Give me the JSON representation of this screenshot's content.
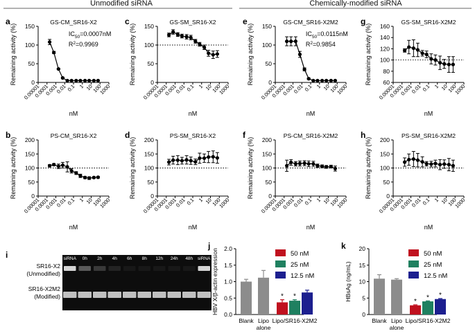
{
  "headers": {
    "left": "Unmodified siRNA",
    "right": "Chemically-modified siRNA"
  },
  "dose_panels": {
    "x_ticks": [
      "0.00001",
      "0.0001",
      "0.001",
      "0.01",
      "0.1",
      "1",
      "10",
      "100",
      "1000"
    ],
    "x_label": "nM",
    "y_label": "Remaining activity (%)",
    "reference_line": 100
  },
  "gel": {
    "letter": "i",
    "lane_labels": [
      "siRNA",
      "0h",
      "2h",
      "4h",
      "6h",
      "8h",
      "12h",
      "24h",
      "48h",
      "siRNA"
    ],
    "row_labels": [
      "SR16-X2\n(Unmodified)",
      "SR16-X2M2\n(Modified)"
    ],
    "top_band_intensity": [
      0.9,
      0.35,
      0.2,
      0.1,
      0.05,
      0.05,
      0.05,
      0.05,
      0.05,
      0.9
    ]
  },
  "chart_data": [
    {
      "id": "a",
      "letter": "a",
      "type": "line",
      "title": "GS-CM_SR16-X2",
      "xscale": "log",
      "xlim": [
        1e-05,
        1000
      ],
      "ylim": [
        0,
        150
      ],
      "yticks": [
        0,
        50,
        100,
        150
      ],
      "ref_line": false,
      "ic50": "IC",
      "ic50_sub": "50",
      "ic50_val": "=0.0007nM",
      "r2": "R",
      "r2_sup": "2",
      "r2_val": "=0.9969",
      "series": [
        {
          "x": [
            0.0002,
            0.0006,
            0.002,
            0.006,
            0.02,
            0.06,
            0.2,
            0.6,
            2,
            6,
            20,
            60
          ],
          "y": [
            108,
            80,
            36,
            12,
            5,
            5,
            5,
            5,
            5,
            5,
            5,
            5
          ],
          "err": [
            7,
            3,
            2,
            2,
            1,
            1,
            1,
            1,
            1,
            1,
            1,
            1
          ]
        }
      ]
    },
    {
      "id": "c",
      "letter": "c",
      "type": "line",
      "title": "GS-SM_SR16-X2",
      "xscale": "log",
      "xlim": [
        1e-05,
        1000
      ],
      "ylim": [
        0,
        150
      ],
      "yticks": [
        0,
        50,
        100,
        150
      ],
      "ref_line": true,
      "series": [
        {
          "x": [
            0.0002,
            0.0006,
            0.002,
            0.006,
            0.02,
            0.06,
            0.2,
            0.6,
            2,
            6,
            20,
            60
          ],
          "y": [
            127,
            135,
            128,
            124,
            122,
            120,
            110,
            102,
            94,
            78,
            74,
            76
          ],
          "err": [
            5,
            6,
            5,
            5,
            6,
            6,
            5,
            5,
            6,
            8,
            10,
            9
          ]
        }
      ]
    },
    {
      "id": "e",
      "letter": "e",
      "type": "line",
      "title": "GS-CM_SR16-X2M2",
      "xscale": "log",
      "xlim": [
        1e-05,
        1000
      ],
      "ylim": [
        0,
        150
      ],
      "yticks": [
        0,
        50,
        100,
        150
      ],
      "ref_line": false,
      "ic50": "IC",
      "ic50_sub": "50",
      "ic50_val": "=0.0115nM",
      "r2": "R",
      "r2_sup": "2",
      "r2_val": "=0.9854",
      "series": [
        {
          "x": [
            0.0002,
            0.0006,
            0.002,
            0.006,
            0.02,
            0.06,
            0.2,
            0.6,
            2,
            6,
            20,
            60
          ],
          "y": [
            110,
            110,
            110,
            75,
            35,
            10,
            5,
            5,
            5,
            5,
            5,
            5
          ],
          "err": [
            12,
            12,
            12,
            8,
            4,
            2,
            1,
            1,
            1,
            1,
            1,
            1
          ]
        }
      ]
    },
    {
      "id": "g",
      "letter": "g",
      "type": "line",
      "title": "GS-SM_SR16-X2M2",
      "xscale": "log",
      "xlim": [
        1e-05,
        1000
      ],
      "ylim": [
        60,
        160
      ],
      "yticks": [
        60,
        80,
        100,
        120,
        140,
        160
      ],
      "ref_line": true,
      "series": [
        {
          "x": [
            0.0002,
            0.0006,
            0.002,
            0.006,
            0.02,
            0.06,
            0.2,
            0.6,
            2,
            6,
            20,
            60
          ],
          "y": [
            117,
            123,
            121,
            118,
            112,
            110,
            102,
            100,
            95,
            93,
            92,
            92
          ],
          "err": [
            3,
            12,
            15,
            12,
            5,
            6,
            9,
            9,
            12,
            8,
            14,
            14
          ]
        }
      ]
    },
    {
      "id": "b",
      "letter": "b",
      "type": "line",
      "title": "PS-CM_SR16-X2",
      "xscale": "log",
      "xlim": [
        1e-05,
        1000
      ],
      "ylim": [
        0,
        200
      ],
      "yticks": [
        0,
        50,
        100,
        150,
        200
      ],
      "ref_line": true,
      "series": [
        {
          "x": [
            0.0002,
            0.0006,
            0.002,
            0.006,
            0.02,
            0.06,
            0.2,
            0.6,
            2,
            6,
            20,
            60
          ],
          "y": [
            108,
            112,
            106,
            110,
            104,
            90,
            82,
            72,
            66,
            64,
            66,
            67
          ],
          "err": [
            4,
            4,
            8,
            10,
            18,
            8,
            5,
            6,
            4,
            5,
            3,
            3
          ]
        }
      ]
    },
    {
      "id": "d",
      "letter": "d",
      "type": "line",
      "title": "PS-SM_SR16-X2",
      "xscale": "log",
      "xlim": [
        1e-05,
        1000
      ],
      "ylim": [
        0,
        200
      ],
      "yticks": [
        0,
        50,
        100,
        150,
        200
      ],
      "ref_line": true,
      "series": [
        {
          "x": [
            0.0002,
            0.0006,
            0.002,
            0.006,
            0.02,
            0.06,
            0.2,
            0.6,
            2,
            6,
            20,
            60
          ],
          "y": [
            121,
            128,
            128,
            126,
            129,
            126,
            122,
            135,
            135,
            139,
            140,
            136
          ],
          "err": [
            10,
            14,
            16,
            12,
            15,
            13,
            10,
            18,
            15,
            20,
            21,
            19
          ]
        }
      ]
    },
    {
      "id": "f",
      "letter": "f",
      "type": "line",
      "title": "PS-CM_SR16-X2M2",
      "xscale": "log",
      "xlim": [
        1e-05,
        1000
      ],
      "ylim": [
        0,
        200
      ],
      "yticks": [
        0,
        50,
        100,
        150,
        200
      ],
      "ref_line": true,
      "series": [
        {
          "x": [
            0.0002,
            0.0006,
            0.002,
            0.006,
            0.02,
            0.06,
            0.2,
            0.6,
            2,
            6,
            20,
            60
          ],
          "y": [
            108,
            120,
            115,
            116,
            117,
            115,
            115,
            108,
            106,
            104,
            105,
            98
          ],
          "err": [
            20,
            10,
            8,
            9,
            9,
            10,
            9,
            6,
            5,
            5,
            5,
            9
          ]
        }
      ]
    },
    {
      "id": "h",
      "letter": "h",
      "type": "line",
      "title": "PS-SM_SR16-X2M2",
      "xscale": "log",
      "xlim": [
        1e-05,
        1000
      ],
      "ylim": [
        0,
        200
      ],
      "yticks": [
        0,
        50,
        100,
        150,
        200
      ],
      "ref_line": true,
      "series": [
        {
          "x": [
            0.0002,
            0.0006,
            0.002,
            0.006,
            0.02,
            0.06,
            0.2,
            0.6,
            2,
            6,
            20,
            60
          ],
          "y": [
            121,
            130,
            132,
            128,
            122,
            115,
            114,
            116,
            112,
            114,
            112,
            108
          ],
          "err": [
            15,
            20,
            27,
            24,
            18,
            8,
            10,
            12,
            18,
            15,
            22,
            20
          ]
        }
      ]
    },
    {
      "id": "j",
      "letter": "j",
      "type": "bar",
      "ylabel": "HBV X/β-actin expression",
      "ylim": [
        0,
        2.0
      ],
      "yticks": [
        "0.0",
        "0.5",
        "1.0",
        "1.5",
        "2.0"
      ],
      "categories": [
        "Blank",
        "Lipo\nalone",
        "Lipo/SR16-X2M2"
      ],
      "bars": [
        {
          "cat": 0,
          "value": 1.0,
          "err": 0.07,
          "color": "#8c8c8c"
        },
        {
          "cat": 1,
          "value": 1.12,
          "err": 0.22,
          "color": "#8c8c8c"
        },
        {
          "cat": 2,
          "value": 0.37,
          "err": 0.08,
          "color": "#c0111f",
          "star": true
        },
        {
          "cat": 2,
          "value": 0.42,
          "err": 0.03,
          "color": "#1f8060",
          "star": true
        },
        {
          "cat": 2,
          "value": 0.67,
          "err": 0.07,
          "color": "#1c1f8f"
        }
      ],
      "legend": [
        {
          "label": "50 nM",
          "color": "#c0111f"
        },
        {
          "label": "25 nM",
          "color": "#1f8060"
        },
        {
          "label": "12.5 nM",
          "color": "#1c1f8f"
        }
      ]
    },
    {
      "id": "k",
      "letter": "k",
      "type": "bar",
      "ylabel": "HBsAg (ng/mL)",
      "ylim": [
        0,
        20
      ],
      "yticks": [
        "0",
        "5",
        "10",
        "15",
        "20"
      ],
      "categories": [
        "Blank",
        "Lipo\nalone",
        "Lipo/SR16-X2M2"
      ],
      "bars": [
        {
          "cat": 0,
          "value": 10.9,
          "err": 1.2,
          "color": "#8c8c8c"
        },
        {
          "cat": 1,
          "value": 10.6,
          "err": 0.3,
          "color": "#8c8c8c"
        },
        {
          "cat": 2,
          "value": 2.8,
          "err": 0.15,
          "color": "#c0111f",
          "star": true
        },
        {
          "cat": 2,
          "value": 4.0,
          "err": 0.15,
          "color": "#1f8060",
          "star": true
        },
        {
          "cat": 2,
          "value": 4.7,
          "err": 0.15,
          "color": "#1c1f8f",
          "star": true
        }
      ],
      "legend": [
        {
          "label": "50 nM",
          "color": "#c0111f"
        },
        {
          "label": "25 nM",
          "color": "#1f8060"
        },
        {
          "label": "12.5 nM",
          "color": "#1c1f8f"
        }
      ]
    }
  ]
}
